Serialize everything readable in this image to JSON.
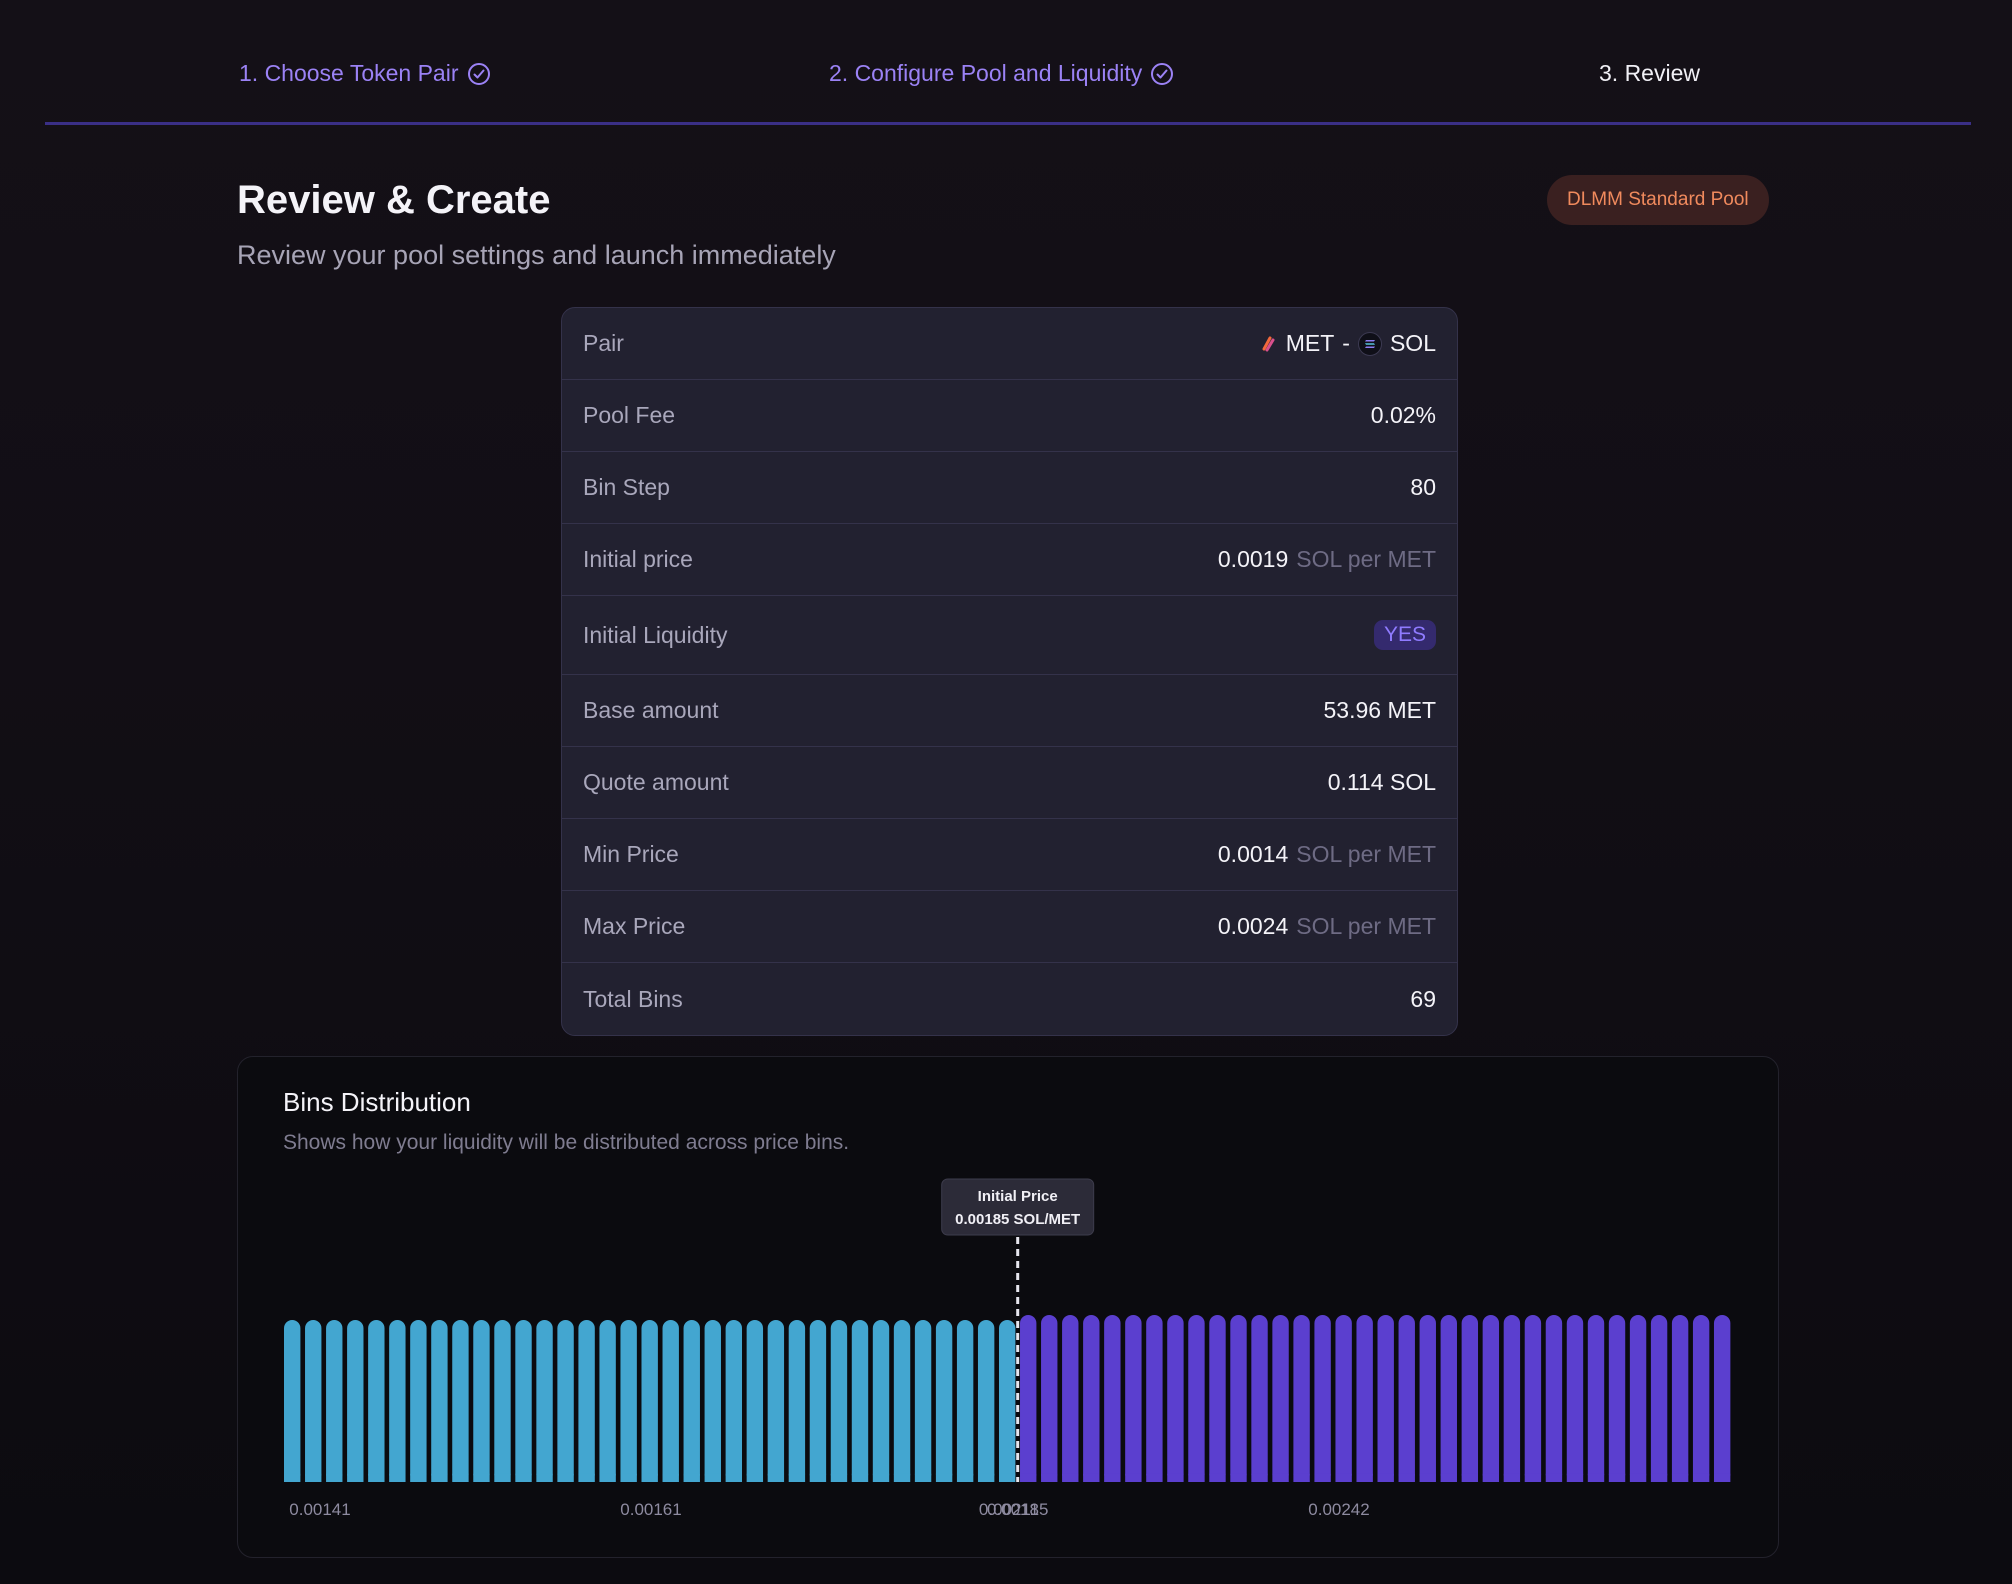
{
  "stepper": {
    "steps": [
      {
        "label": "1. Choose Token Pair",
        "state": "done"
      },
      {
        "label": "2. Configure Pool and Liquidity",
        "state": "done"
      },
      {
        "label": "3. Review",
        "state": "current"
      }
    ]
  },
  "header": {
    "title": "Review & Create",
    "subtitle": "Review your pool settings and launch immediately",
    "badge": "DLMM Standard Pool"
  },
  "summary": {
    "pair": {
      "label": "Pair",
      "base": "MET",
      "separator": "-",
      "quote": "SOL"
    },
    "pool_fee": {
      "label": "Pool Fee",
      "value": "0.02%"
    },
    "bin_step": {
      "label": "Bin Step",
      "value": "80"
    },
    "initial_price": {
      "label": "Initial price",
      "value": "0.0019",
      "unit": "SOL per MET"
    },
    "initial_liquidity": {
      "label": "Initial Liquidity",
      "value": "YES"
    },
    "base_amount": {
      "label": "Base amount",
      "value": "53.96 MET"
    },
    "quote_amount": {
      "label": "Quote amount",
      "value": "0.114 SOL"
    },
    "min_price": {
      "label": "Min Price",
      "value": "0.0014",
      "unit": "SOL per MET"
    },
    "max_price": {
      "label": "Max Price",
      "value": "0.0024",
      "unit": "SOL per MET"
    },
    "total_bins": {
      "label": "Total Bins",
      "value": "69"
    }
  },
  "bins_card": {
    "title": "Bins Distribution",
    "subtitle": "Shows how your liquidity will be distributed across price bins."
  },
  "chart_data": {
    "type": "bar",
    "bins_below": 35,
    "bins_above": 34,
    "relative_height_below": 0.97,
    "relative_height_above": 1.0,
    "colors": {
      "below": "#43a6d0",
      "above": "#5b3fcf",
      "marker": "#e6e6ee"
    },
    "marker": {
      "title": "Initial Price",
      "label": "0.00185 SOL/MET",
      "value": 0.00185
    },
    "xticks": [
      "0.00141",
      "0.00161",
      "0.00185",
      "0.00211",
      "0.00242"
    ],
    "grid": false
  }
}
